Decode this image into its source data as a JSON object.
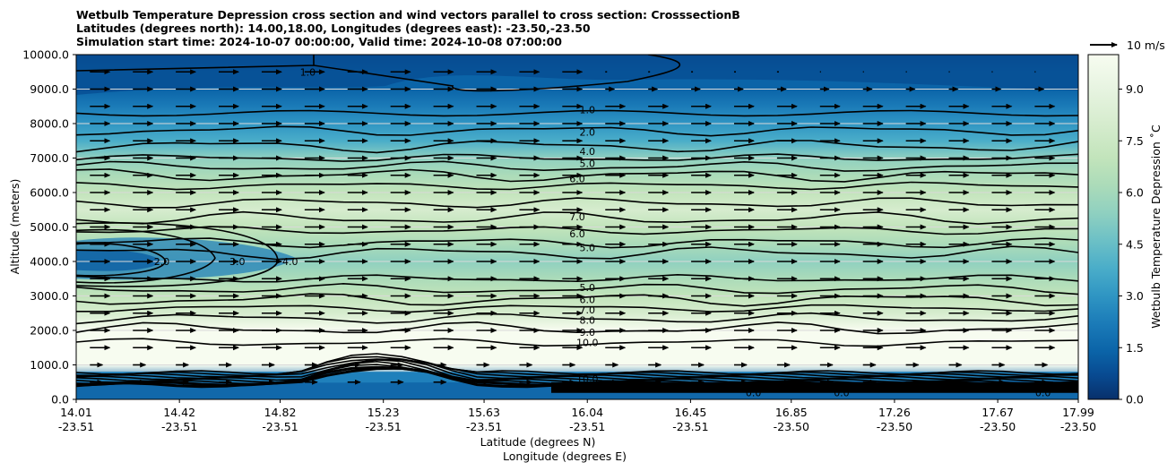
{
  "chart_data": {
    "type": "contour",
    "title_lines": [
      "Wetbulb Temperature Depression cross section and wind vectors parallel to cross section: CrosssectionB",
      "Latitudes (degrees north): 14.00,18.00, Longitudes (degrees east): -23.50,-23.50",
      "Simulation start time: 2024-10-07 00:00:00, Valid time: 2024-10-08 07:00:00"
    ],
    "xlabel_lines": [
      "Latitude (degrees N)",
      "Longitude (degrees E)"
    ],
    "ylabel": "Altitude (meters)",
    "ylim": [
      0,
      10000
    ],
    "y_ticks": [
      "0.0",
      "1000.0",
      "2000.0",
      "3000.0",
      "4000.0",
      "5000.0",
      "6000.0",
      "7000.0",
      "8000.0",
      "9000.0",
      "10000.0"
    ],
    "x_ticks": [
      {
        "lat": "14.01",
        "lon": "-23.51"
      },
      {
        "lat": "14.42",
        "lon": "-23.51"
      },
      {
        "lat": "14.82",
        "lon": "-23.51"
      },
      {
        "lat": "15.23",
        "lon": "-23.51"
      },
      {
        "lat": "15.63",
        "lon": "-23.51"
      },
      {
        "lat": "16.04",
        "lon": "-23.51"
      },
      {
        "lat": "16.45",
        "lon": "-23.51"
      },
      {
        "lat": "16.85",
        "lon": "-23.50"
      },
      {
        "lat": "17.26",
        "lon": "-23.50"
      },
      {
        "lat": "17.67",
        "lon": "-23.50"
      },
      {
        "lat": "17.99",
        "lon": "-23.50"
      }
    ],
    "grid": "horizontal",
    "colorbar": {
      "label": "Wetbulb Temperature Depression ˚C",
      "range": [
        0,
        10
      ],
      "ticks": [
        "0.0",
        "1.5",
        "3.0",
        "4.5",
        "6.0",
        "7.5",
        "9.0"
      ],
      "colormap": "GnBu_r"
    },
    "quiver_key": {
      "label": "10 m/s",
      "value": 10
    },
    "profile": {
      "altitudes": [
        0,
        500,
        1000,
        1500,
        2000,
        2500,
        3000,
        3500,
        4000,
        4500,
        5000,
        5500,
        6000,
        6500,
        7000,
        7500,
        8000,
        8500,
        9000,
        9500,
        10000
      ],
      "depression": [
        0.5,
        1.0,
        12.0,
        11.0,
        9.5,
        8.0,
        6.5,
        5.5,
        5.0,
        5.8,
        6.8,
        7.5,
        7.0,
        6.2,
        5.0,
        3.5,
        2.5,
        1.6,
        1.2,
        1.0,
        0.6
      ]
    },
    "wind_vector_columns": 23,
    "contour_labels": [
      {
        "value": "1.0",
        "lat": 16.04,
        "alt": 8400
      },
      {
        "value": "2.0",
        "lat": 16.04,
        "alt": 7750
      },
      {
        "value": "4.0",
        "lat": 16.04,
        "alt": 7200
      },
      {
        "value": "5.0",
        "lat": 16.04,
        "alt": 6850
      },
      {
        "value": "6.0",
        "lat": 16.0,
        "alt": 6400
      },
      {
        "value": "7.0",
        "lat": 16.0,
        "alt": 5300
      },
      {
        "value": "6.0",
        "lat": 16.0,
        "alt": 4800
      },
      {
        "value": "5.0",
        "lat": 16.04,
        "alt": 4400
      },
      {
        "value": "5.0",
        "lat": 16.04,
        "alt": 3250
      },
      {
        "value": "6.0",
        "lat": 16.04,
        "alt": 2900
      },
      {
        "value": "7.0",
        "lat": 16.04,
        "alt": 2600
      },
      {
        "value": "8.0",
        "lat": 16.04,
        "alt": 2300
      },
      {
        "value": "9.0",
        "lat": 16.04,
        "alt": 1950
      },
      {
        "value": "10.0",
        "lat": 16.04,
        "alt": 1650
      },
      {
        "value": "1.0",
        "lat": 14.93,
        "alt": 9500
      },
      {
        "value": "2.0",
        "lat": 14.35,
        "alt": 4000
      },
      {
        "value": "3.0",
        "lat": 14.65,
        "alt": 4000
      },
      {
        "value": "4.0",
        "lat": 14.86,
        "alt": 4000
      },
      {
        "value": "0.0",
        "lat": 16.7,
        "alt": 200
      },
      {
        "value": "0.0",
        "lat": 17.05,
        "alt": 200
      },
      {
        "value": "0.0",
        "lat": 17.85,
        "alt": 200
      },
      {
        "value": "10.0",
        "lat": 16.04,
        "alt": 600
      }
    ]
  }
}
